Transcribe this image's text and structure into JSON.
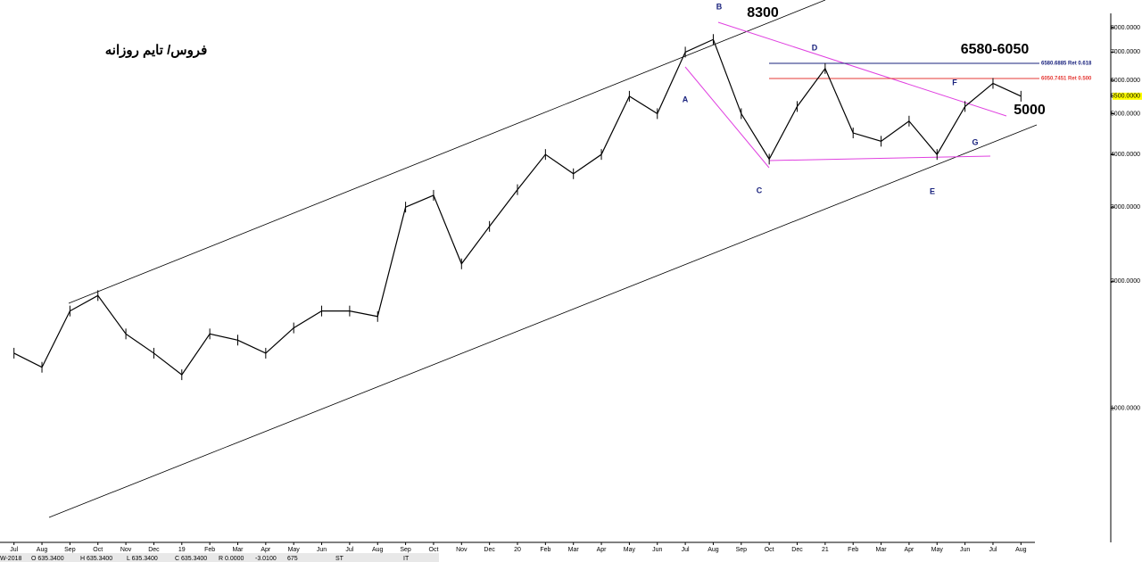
{
  "chart_data": {
    "type": "line",
    "title": "فروس/ تایم روزانه",
    "categories": [
      "Jul",
      "Aug",
      "Sep",
      "Oct",
      "Nov",
      "Dec",
      "19",
      "Feb",
      "Mar",
      "Apr",
      "May",
      "Jun",
      "Jul",
      "Aug",
      "Sep",
      "Oct",
      "Nov",
      "Dec",
      "20",
      "Feb",
      "Mar",
      "Apr",
      "May",
      "Jun",
      "Jul",
      "Aug",
      "Sep",
      "Oct",
      "Dec",
      "21",
      "Feb",
      "Mar",
      "Apr",
      "May",
      "Jun",
      "Jul",
      "Aug"
    ],
    "series": [
      {
        "name": "Close",
        "color": "#000000",
        "values": [
          1350,
          1250,
          1700,
          1850,
          1500,
          1350,
          1200,
          1500,
          1450,
          1350,
          1550,
          1700,
          1700,
          1650,
          3000,
          3200,
          2200,
          2700,
          3300,
          4000,
          3600,
          4000,
          5500,
          5000,
          7000,
          7500,
          5000,
          3900,
          5200,
          6400,
          4500,
          4300,
          4800,
          4000,
          5200,
          5900,
          5500
        ]
      }
    ],
    "log_scale": true,
    "ylim": [
      480,
      8650
    ],
    "yticks": [
      {
        "value": 1000,
        "label": "1000.0000"
      },
      {
        "value": 2000,
        "label": "2000.0000"
      },
      {
        "value": 3000,
        "label": "3000.0000"
      },
      {
        "value": 4000,
        "label": "4000.0000"
      },
      {
        "value": 5000,
        "label": "5000.0000"
      },
      {
        "value": 5500,
        "label": "5500.0000"
      },
      {
        "value": 6000,
        "label": "6000.0000"
      },
      {
        "value": 7000,
        "label": "7000.0000"
      },
      {
        "value": 8000,
        "label": "8000.0000"
      }
    ],
    "annotations": [
      "8300",
      "6580-6050",
      "5000",
      "A",
      "B",
      "C",
      "D",
      "E",
      "F",
      "G",
      "6580.6885 Ret 0.618",
      "6050.7451 Ret 0.500"
    ],
    "status": [
      "W-2018",
      "O 635.3400",
      "H 635.3400",
      "L 635.3400",
      "C 635.3400",
      "R 0.0000",
      "-3.0100",
      "675",
      "ST",
      "IT"
    ]
  }
}
